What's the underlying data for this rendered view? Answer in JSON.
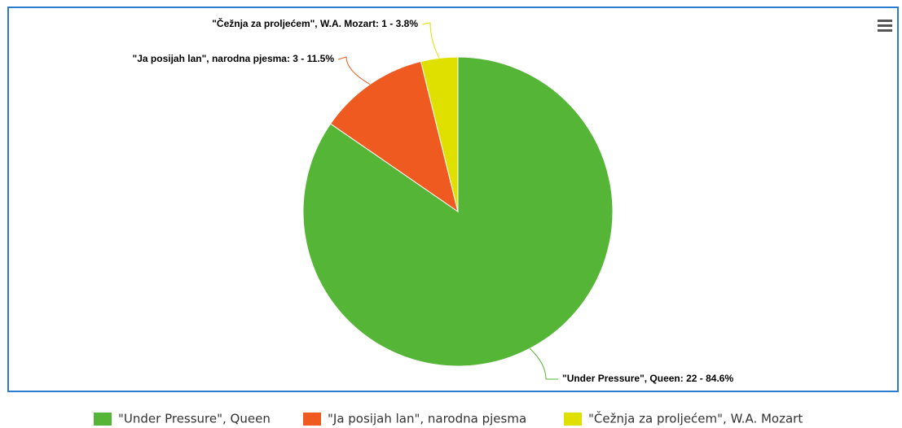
{
  "chart_data": {
    "type": "pie",
    "categories": [
      "\"Under Pressure\", Queen",
      "\"Ja posijah lan\", narodna pjesma",
      "\"Čežnja za proljećem\", W.A. Mozart"
    ],
    "values": [
      22,
      3,
      1
    ],
    "value_labels": [
      "\"Under Pressure\", Queen: 22 - 84.6%",
      "\"Ja posijah lan\", narodna pjesma: 3 - 11.5%",
      "\"Čežnja za proljećem\", W.A. Mozart: 1 - 3.8%"
    ],
    "colors": [
      "#55b536",
      "#ee5a1f",
      "#dfe000"
    ],
    "legend": "bottom"
  }
}
